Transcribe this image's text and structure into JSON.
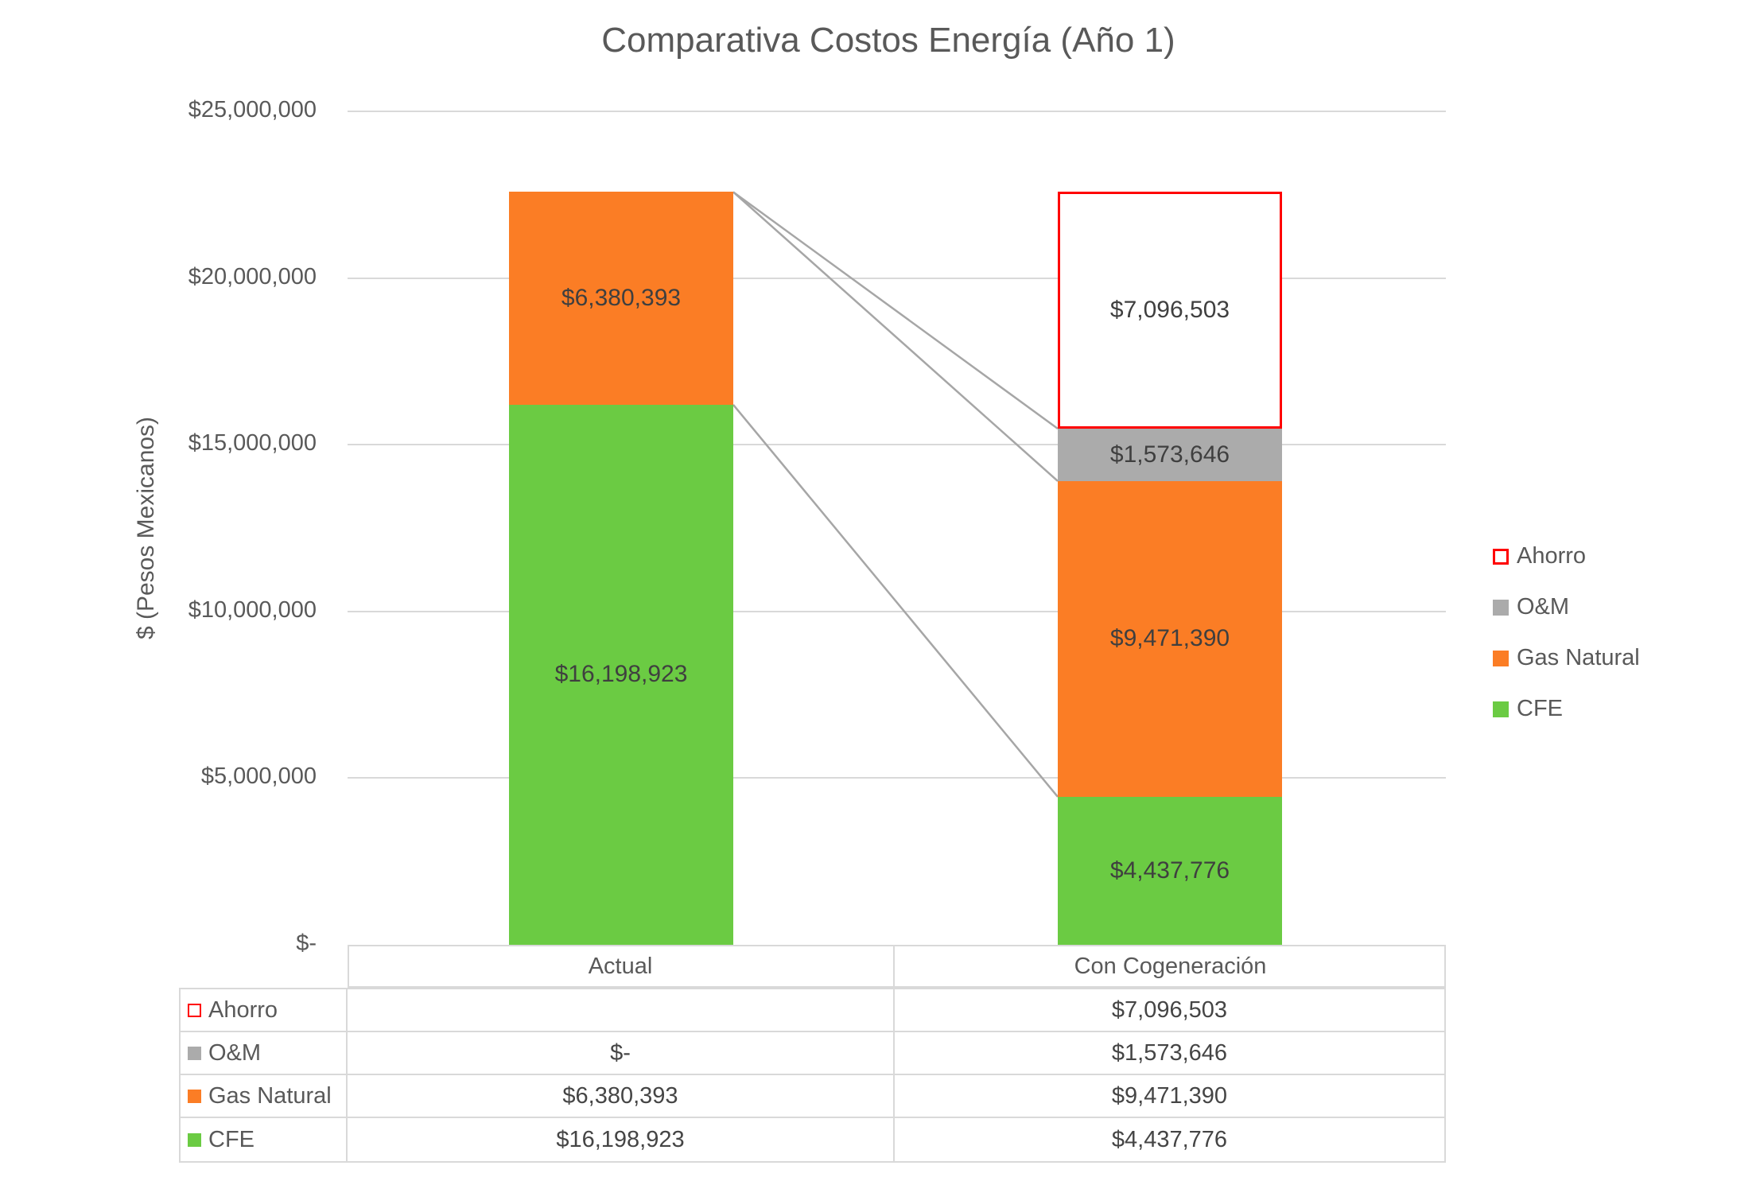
{
  "title": "Comparativa Costos Energía (Año 1)",
  "y_axis": {
    "title": "$ (Pesos Mexicanos)",
    "ticks": [
      {
        "label": "$25,000,000",
        "value": 25000000
      },
      {
        "label": "$20,000,000",
        "value": 20000000
      },
      {
        "label": "$15,000,000",
        "value": 15000000
      },
      {
        "label": "$10,000,000",
        "value": 10000000
      },
      {
        "label": "$5,000,000",
        "value": 5000000
      },
      {
        "label": "$-",
        "value": 0
      }
    ]
  },
  "chart_data": {
    "type": "bar",
    "stacked": true,
    "title": "Comparativa Costos Energía (Año 1)",
    "ylabel": "$ (Pesos Mexicanos)",
    "ylim": [
      0,
      25000000
    ],
    "grid": true,
    "legend_position": "right",
    "categories": [
      "Actual",
      "Con Cogeneración"
    ],
    "series": [
      {
        "name": "CFE",
        "color": "#6BCB43",
        "values": [
          16198923,
          4437776
        ],
        "labels": [
          "$16,198,923",
          "$4,437,776"
        ]
      },
      {
        "name": "Gas Natural",
        "color": "#FB7D25",
        "values": [
          6380393,
          9471390
        ],
        "labels": [
          "$6,380,393",
          "$9,471,390"
        ]
      },
      {
        "name": "O&M",
        "color": "#ABABAB",
        "values": [
          0,
          1573646
        ],
        "labels": [
          "",
          "$1,573,646"
        ]
      },
      {
        "name": "Ahorro",
        "color": "#FFFFFF",
        "border": "#FF0000",
        "values": [
          0,
          7096503
        ],
        "labels": [
          "",
          "$7,096,503"
        ]
      }
    ],
    "series_lines": [
      "O&M",
      "Gas Natural",
      "CFE"
    ]
  },
  "legend": {
    "items": [
      {
        "label": "Ahorro",
        "swatch_fill": "#FFFFFF",
        "swatch_border": "#FF0000"
      },
      {
        "label": "O&M",
        "swatch_fill": "#ABABAB",
        "swatch_border": null
      },
      {
        "label": "Gas Natural",
        "swatch_fill": "#FB7D25",
        "swatch_border": null
      },
      {
        "label": "CFE",
        "swatch_fill": "#6BCB43",
        "swatch_border": null
      }
    ]
  },
  "table": {
    "column_headers": [
      "Actual",
      "Con Cogeneración"
    ],
    "rows": [
      {
        "label": "Ahorro",
        "marker_fill": "#FFFFFF",
        "marker_border": "#FF0000",
        "cells": [
          "",
          "$7,096,503"
        ]
      },
      {
        "label": "O&M",
        "marker_fill": "#ABABAB",
        "marker_border": null,
        "cells": [
          "$-",
          "$1,573,646"
        ]
      },
      {
        "label": "Gas Natural",
        "marker_fill": "#FB7D25",
        "marker_border": null,
        "cells": [
          "$6,380,393",
          "$9,471,390"
        ]
      },
      {
        "label": "CFE",
        "marker_fill": "#6BCB43",
        "marker_border": null,
        "cells": [
          "$16,198,923",
          "$4,437,776"
        ]
      }
    ]
  },
  "colors": {
    "gridline": "#D9D9D9",
    "series_line": "#A6A6A6",
    "text": "#595959",
    "data_label": "#3f3f3f"
  }
}
